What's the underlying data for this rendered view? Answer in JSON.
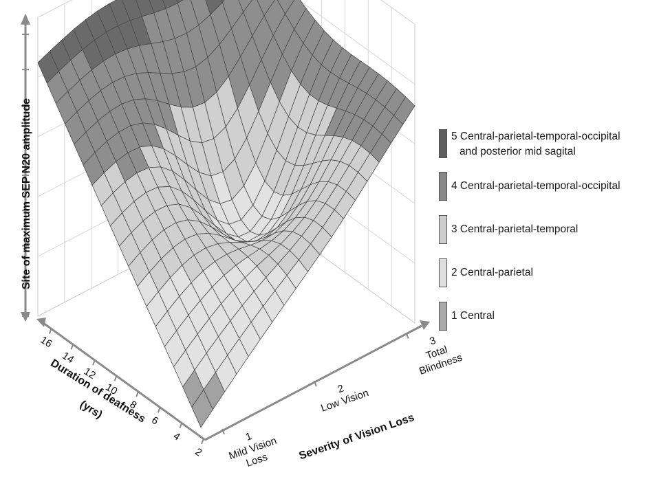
{
  "chart_data": {
    "type": "surface",
    "title": "",
    "zlabel": "Site of maximum SEP N20 amplitude",
    "xlabel": "Severity of Vision Loss",
    "ylabel_line1": "Duration of deafness",
    "ylabel_line2": "(yrs)",
    "x_ticks": [
      {
        "value": 1,
        "label": "1",
        "sub1": "Mild Vision",
        "sub2": "Loss"
      },
      {
        "value": 2,
        "label": "2",
        "sub1": "Low Vision",
        "sub2": ""
      },
      {
        "value": 3,
        "label": "3",
        "sub1": "Total",
        "sub2": "Blindness"
      }
    ],
    "y_ticks": [
      "2",
      "4",
      "6",
      "8",
      "10",
      "12",
      "14",
      "16"
    ],
    "z_range": [
      1,
      5
    ],
    "legend": [
      {
        "level": 5,
        "line1": "5 Central-parietal-temporal-occipital",
        "line2": "and posterior mid sagital",
        "color": "#5e5e5e"
      },
      {
        "level": 4,
        "line1": "4 Central-parietal-temporal-occipital",
        "line2": "",
        "color": "#878787"
      },
      {
        "level": 3,
        "line1": "3 Central-parietal-temporal",
        "line2": "",
        "color": "#cdcdcd"
      },
      {
        "level": 2,
        "line1": "2 Central-parietal",
        "line2": "",
        "color": "#dedede"
      },
      {
        "level": 1,
        "line1": "1 Central",
        "line2": "",
        "color": "#a8a8a8"
      }
    ],
    "surface_corners": {
      "vision1_duration2": 1.1,
      "vision1_duration17": 4.6,
      "vision3_duration2": 4.1,
      "vision3_duration17": 4.9
    },
    "legend_placement": "right"
  }
}
